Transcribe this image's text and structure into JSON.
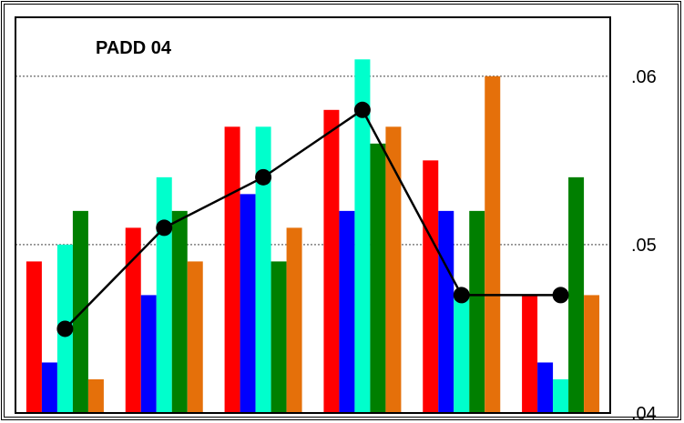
{
  "chart_data": {
    "type": "bar",
    "title": "PADD 04",
    "xlabel": "",
    "ylabel": "",
    "ylim": [
      0.04,
      0.0635
    ],
    "yticks": [
      {
        "value": 0.04,
        "label": ".04"
      },
      {
        "value": 0.05,
        "label": ".05"
      },
      {
        "value": 0.06,
        "label": ".06"
      }
    ],
    "grid": true,
    "categories": [
      "",
      "",
      "",
      "",
      "",
      ""
    ],
    "series": [
      {
        "color": "#ff0000",
        "values": [
          0.049,
          0.051,
          0.057,
          0.058,
          0.055,
          0.047
        ]
      },
      {
        "color": "#0000ff",
        "values": [
          0.043,
          0.047,
          0.053,
          0.052,
          0.052,
          0.043
        ]
      },
      {
        "color": "#00ffcc",
        "values": [
          0.05,
          0.054,
          0.057,
          0.061,
          0.047,
          0.042
        ]
      },
      {
        "color": "#007f00",
        "values": [
          0.052,
          0.052,
          0.049,
          0.056,
          0.052,
          0.054
        ]
      },
      {
        "color": "#e5700a",
        "values": [
          0.042,
          0.049,
          0.051,
          0.057,
          0.06,
          0.047
        ]
      }
    ],
    "line": {
      "color": "#000000",
      "values": [
        0.045,
        0.051,
        0.054,
        0.058,
        0.047,
        0.047
      ]
    }
  }
}
